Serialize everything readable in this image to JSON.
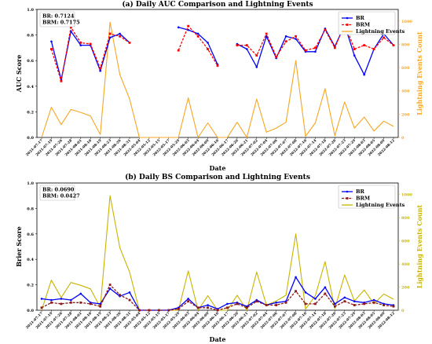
{
  "chart_data": [
    {
      "type": "line",
      "title": "(a) Daily AUC Comparison and Lightning Events",
      "xlabel": "Date",
      "ylabel": "AUC Score",
      "y2label": "Lightning Events Count",
      "ylim": [
        0,
        1.0
      ],
      "y2lim": [
        0,
        1100
      ],
      "yticks": [
        "0.0",
        "0.2",
        "0.4",
        "0.6",
        "0.8",
        "1.0"
      ],
      "y2ticks": [
        "0",
        "200",
        "400",
        "600",
        "800",
        "1000"
      ],
      "legend_position": "top-right",
      "grid": false,
      "stats": [
        "BR: 0.7124",
        "BRM: 0.7175"
      ],
      "x": [
        "2021-07-17",
        "2021-07-19",
        "2021-07-26",
        "2021-07-28",
        "2021-08-01",
        "2021-08-10",
        "2021-08-19",
        "2021-08-23",
        "2021-08-26",
        "2021-08-31",
        "2022-05-04",
        "2022-05-12",
        "2022-05-15",
        "2022-05-17",
        "2022-05-29",
        "2022-06-03",
        "2022-06-04",
        "2022-06-09",
        "2022-06-10",
        "2022-06-17",
        "2022-06-20",
        "2022-06-21",
        "2022-07-02",
        "2022-07-04",
        "2022-07-06",
        "2022-07-07",
        "2022-07-08",
        "2022-07-10",
        "2022-07-14",
        "2022-07-18",
        "2022-07-20",
        "2022-07-23",
        "2022-07-29",
        "2022-08-03",
        "2022-08-05",
        "2022-08-09",
        "2022-08-12"
      ],
      "series": [
        {
          "name": "BR",
          "color": "#0000ff",
          "style": "solid",
          "values": [
            null,
            0.75,
            0.45,
            0.83,
            0.72,
            0.72,
            0.52,
            0.78,
            0.81,
            0.74,
            null,
            null,
            null,
            null,
            0.86,
            0.84,
            0.81,
            0.74,
            0.57,
            null,
            0.73,
            0.69,
            0.55,
            0.79,
            0.62,
            0.79,
            0.77,
            0.67,
            0.67,
            0.85,
            0.71,
            0.88,
            0.64,
            0.49,
            0.69,
            0.81,
            0.72
          ]
        },
        {
          "name": "BRM",
          "color": "#ff0000",
          "style": "dashed",
          "values": [
            null,
            0.69,
            0.44,
            0.86,
            0.74,
            0.73,
            0.54,
            0.81,
            0.79,
            0.74,
            null,
            null,
            null,
            null,
            0.68,
            0.87,
            0.79,
            0.69,
            0.56,
            null,
            0.72,
            0.72,
            0.64,
            0.81,
            0.63,
            0.75,
            0.79,
            0.68,
            0.7,
            0.84,
            0.7,
            0.89,
            0.69,
            0.72,
            0.69,
            0.78,
            0.72
          ]
        },
        {
          "name": "Lightning Events",
          "color": "#f5a623",
          "style": "solid",
          "axis": "right",
          "values": [
            0,
            260,
            110,
            240,
            215,
            185,
            25,
            990,
            540,
            330,
            0,
            0,
            0,
            0,
            0,
            340,
            0,
            125,
            0,
            0,
            130,
            0,
            330,
            45,
            80,
            130,
            660,
            10,
            125,
            420,
            15,
            305,
            80,
            175,
            55,
            140,
            95
          ]
        }
      ]
    },
    {
      "type": "line",
      "title": "(b) Daily BS Comparison and Lightning Events",
      "xlabel": "Date",
      "ylabel": "Brier Score",
      "y2label": "Lightning Events Count",
      "ylim": [
        0,
        1.0
      ],
      "y2lim": [
        0,
        1100
      ],
      "yticks": [
        "0.0",
        "0.2",
        "0.4",
        "0.6",
        "0.8",
        "1.0"
      ],
      "y2ticks": [
        "0",
        "200",
        "400",
        "600",
        "800",
        "1000"
      ],
      "legend_position": "top-right",
      "grid": false,
      "stats": [
        "BR: 0.0690",
        "BRM: 0.0427"
      ],
      "x": [
        "2021-07-17",
        "2021-07-19",
        "2021-07-26",
        "2021-07-28",
        "2021-08-01",
        "2021-08-10",
        "2021-08-19",
        "2021-08-23",
        "2021-08-26",
        "2021-08-31",
        "2022-05-04",
        "2022-05-12",
        "2022-05-15",
        "2022-05-17",
        "2022-05-29",
        "2022-06-03",
        "2022-06-04",
        "2022-06-09",
        "2022-06-10",
        "2022-06-17",
        "2022-06-20",
        "2022-06-21",
        "2022-07-02",
        "2022-07-04",
        "2022-07-06",
        "2022-07-07",
        "2022-07-08",
        "2022-07-10",
        "2022-07-14",
        "2022-07-18",
        "2022-07-20",
        "2022-07-23",
        "2022-07-29",
        "2022-08-03",
        "2022-08-05",
        "2022-08-09",
        "2022-08-12"
      ],
      "series": [
        {
          "name": "BR",
          "color": "#0000ff",
          "style": "solid",
          "values": [
            0.09,
            0.08,
            0.09,
            0.08,
            0.13,
            0.06,
            0.05,
            0.17,
            0.11,
            0.14,
            0.0,
            0.0,
            0.0,
            0.0,
            0.02,
            0.09,
            0.02,
            0.04,
            0.01,
            0.05,
            0.06,
            0.03,
            0.08,
            0.04,
            0.06,
            0.07,
            0.26,
            0.14,
            0.09,
            0.18,
            0.05,
            0.1,
            0.07,
            0.06,
            0.08,
            0.05,
            0.04
          ]
        },
        {
          "name": "BRM",
          "color": "#8b1a1a",
          "style": "dashed",
          "values": [
            0.02,
            0.06,
            0.05,
            0.06,
            0.06,
            0.05,
            0.03,
            0.2,
            0.12,
            0.08,
            0.0,
            0.0,
            0.0,
            0.0,
            0.01,
            0.07,
            0.02,
            0.02,
            0.0,
            0.02,
            0.05,
            0.02,
            0.07,
            0.04,
            0.04,
            0.06,
            0.15,
            0.05,
            0.05,
            0.13,
            0.03,
            0.07,
            0.04,
            0.05,
            0.06,
            0.04,
            0.03
          ]
        },
        {
          "name": "Lightning Events",
          "color": "#c8b400",
          "style": "solid",
          "axis": "right",
          "values": [
            0,
            260,
            110,
            240,
            215,
            185,
            25,
            990,
            540,
            330,
            0,
            0,
            0,
            0,
            0,
            340,
            0,
            125,
            0,
            0,
            130,
            0,
            330,
            45,
            80,
            130,
            660,
            10,
            125,
            420,
            15,
            305,
            80,
            175,
            55,
            140,
            95
          ]
        }
      ]
    }
  ]
}
